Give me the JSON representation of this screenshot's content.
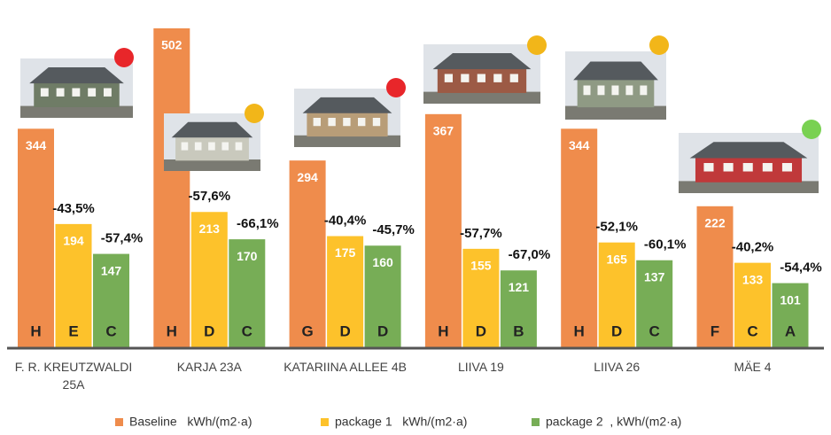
{
  "chart_data": {
    "type": "bar",
    "categories": [
      [
        "F. R. KREUTZWALDI",
        "25A"
      ],
      [
        "KARJA 23A"
      ],
      [
        "KATARIINA ALLEE 4B"
      ],
      [
        "LIIVA 19"
      ],
      [
        "LIIVA 26"
      ],
      [
        "MÄE 4"
      ]
    ],
    "status_colors": [
      "#e8262a",
      "#f2b619",
      "#e8262a",
      "#f2b619",
      "#f2b619",
      "#79d152"
    ],
    "series": [
      {
        "name": "Baseline   kWh/(m2·a)",
        "color": "#ef8c4c",
        "values": [
          344,
          502,
          294,
          367,
          344,
          222
        ],
        "classes": [
          "H",
          "H",
          "G",
          "H",
          "H",
          "F"
        ]
      },
      {
        "name": "package 1   kWh/(m2·a)",
        "color": "#fdc22b",
        "values": [
          194,
          213,
          175,
          155,
          165,
          133
        ],
        "classes": [
          "E",
          "D",
          "D",
          "D",
          "D",
          "C"
        ],
        "changes": [
          -43.5,
          -57.6,
          -40.4,
          -57.7,
          -52.1,
          -40.2
        ],
        "change_labels": [
          "-43,5%",
          "-57,6%",
          "-40,4%",
          "-57,7%",
          "-52,1%",
          "-40,2%"
        ]
      },
      {
        "name": "package 2  , kWh/(m2·a)",
        "color": "#77ad56",
        "values": [
          147,
          170,
          160,
          121,
          137,
          101
        ],
        "classes": [
          "C",
          "C",
          "D",
          "B",
          "C",
          "A"
        ],
        "changes": [
          -57.4,
          -66.1,
          -45.7,
          -67.0,
          -60.1,
          -54.4
        ],
        "change_labels": [
          "-57,4%",
          "-66,1%",
          "-45,7%",
          "-67,0%",
          "-60,1%",
          "-54,4%"
        ]
      }
    ]
  }
}
